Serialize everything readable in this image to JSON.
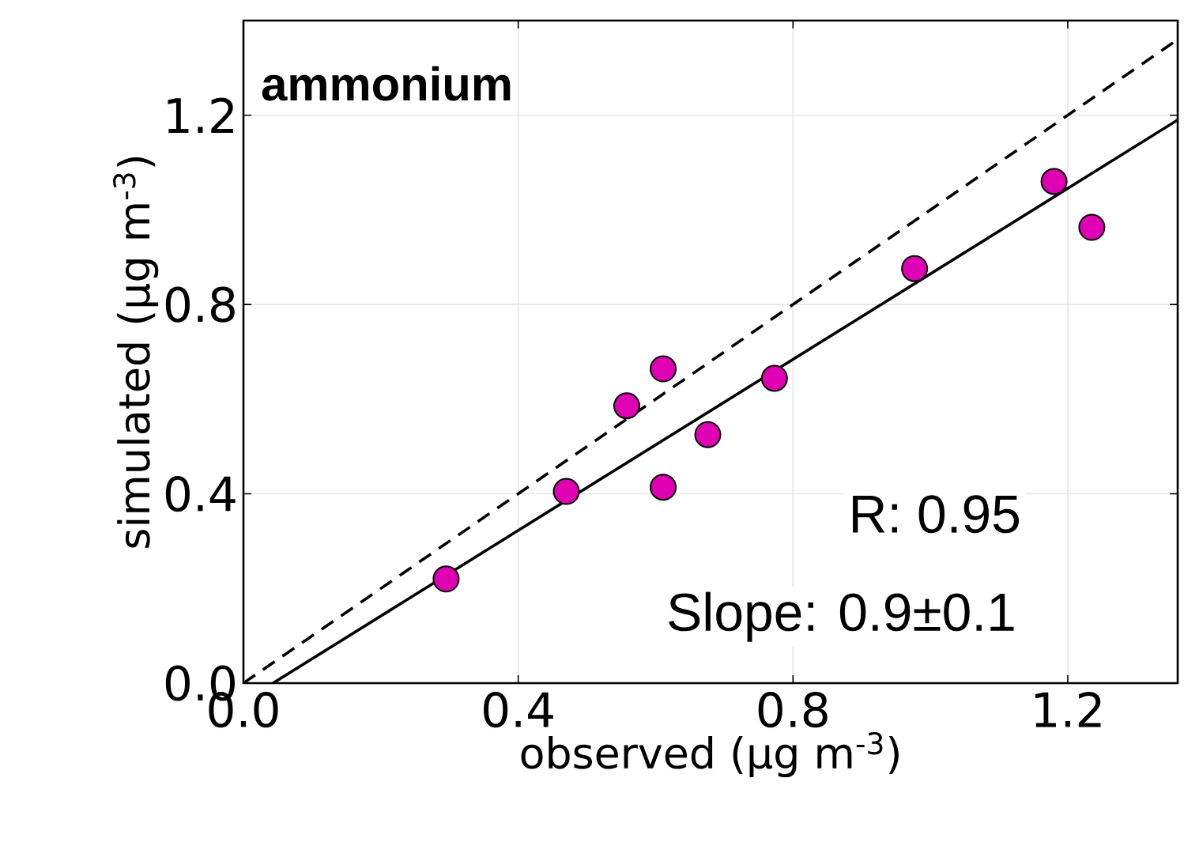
{
  "chart_data": {
    "type": "scatter",
    "title": "ammonium",
    "xlabel": "observed (μg m$^{-3}$)",
    "ylabel": "simulated (μg m$^{-3}$)",
    "annotations": [
      "R: 0.95",
      "Slope: 0.9±0.1"
    ],
    "series": [
      {
        "color": "#e000b4",
        "marker": "circle",
        "x": [
          0.295,
          0.47,
          0.558,
          0.611,
          0.611,
          0.676,
          0.773,
          0.977,
          1.18,
          1.235
        ],
        "values": [
          0.22,
          0.405,
          0.586,
          0.664,
          0.414,
          0.525,
          0.644,
          0.876,
          1.06,
          0.963
        ]
      },
      {
        "type": "line",
        "color": "#000000",
        "line_style": "dashed",
        "marker": "none",
        "x": [
          0,
          1.36
        ],
        "values": [
          0,
          1.36
        ]
      },
      {
        "type": "line",
        "color": "#000000",
        "line_style": "solid",
        "marker": "none",
        "x": [
          0.043,
          1.36
        ],
        "values": [
          0,
          1.19
        ]
      }
    ],
    "xlim": [
      0,
      1.36
    ],
    "ylim": [
      0,
      1.4
    ],
    "xticks": [
      {
        "value": 0,
        "label": "0.0"
      },
      {
        "value": 0.4,
        "label": "0.4"
      },
      {
        "value": 0.8,
        "label": "0.8"
      },
      {
        "value": 1.2,
        "label": "1.2"
      }
    ],
    "yticks": [
      {
        "value": 0,
        "label": "0.0"
      },
      {
        "value": 0.4,
        "label": "0.4"
      },
      {
        "value": 0.8,
        "label": "0.8"
      },
      {
        "value": 1.2,
        "label": "1.2"
      }
    ],
    "grid": true
  }
}
